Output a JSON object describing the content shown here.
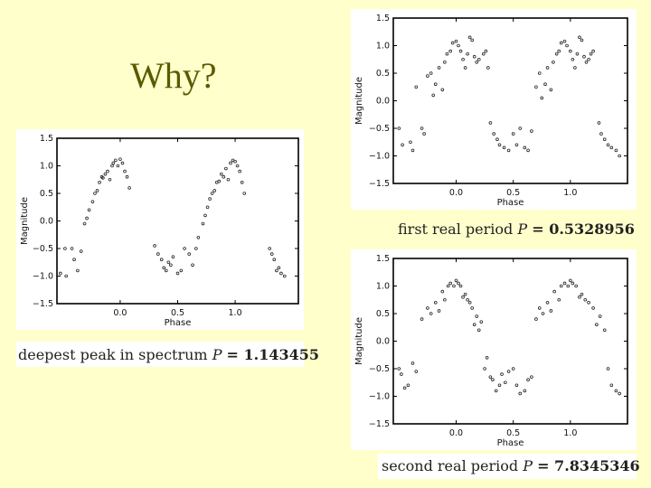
{
  "slide": {
    "title": "Why?"
  },
  "chart_data": [
    {
      "type": "scatter",
      "caption": "deepest peak in spectrum",
      "p_symbol": "P",
      "p_value": "= 1.143455",
      "xlabel": "Phase",
      "ylabel": "Magnitude",
      "xlim": [
        -0.55,
        1.55
      ],
      "ylim": [
        -1.5,
        1.5
      ],
      "xticks": [
        0.0,
        0.5,
        1.0
      ],
      "xtick_labels": [
        "0.0",
        "0.5",
        "1.0"
      ],
      "yticks": [
        1.5,
        1.0,
        0.5,
        0.0,
        -0.5,
        -1.0,
        -1.5
      ],
      "ytick_labels": [
        "1.5",
        "1.0",
        "0.5",
        "0.0",
        "−0.5",
        "−1.0",
        "−1.5"
      ],
      "grid": false,
      "x": [
        -0.52,
        -0.48,
        -0.47,
        -0.42,
        -0.4,
        -0.37,
        -0.34,
        -0.31,
        -0.29,
        -0.27,
        -0.24,
        -0.22,
        -0.2,
        -0.18,
        -0.16,
        -0.15,
        -0.13,
        -0.11,
        -0.09,
        -0.07,
        -0.06,
        -0.04,
        -0.02,
        0.0,
        0.02,
        0.04,
        0.06,
        0.08,
        0.3,
        0.33,
        0.36,
        0.38,
        0.4,
        0.42,
        0.44,
        0.46,
        0.5,
        0.53,
        0.56,
        0.6,
        0.63,
        0.66,
        0.68,
        0.72,
        0.74,
        0.76,
        0.78,
        0.8,
        0.82,
        0.84,
        0.86,
        0.88,
        0.9,
        0.92,
        0.94,
        0.96,
        0.98,
        1.0,
        1.02,
        1.04,
        1.06,
        1.08,
        1.3,
        1.32,
        1.34,
        1.36,
        1.38,
        1.4,
        1.43
      ],
      "y": [
        -0.95,
        -0.5,
        -1.0,
        -0.5,
        -0.7,
        -0.9,
        -0.55,
        -0.05,
        0.05,
        0.2,
        0.35,
        0.5,
        0.55,
        0.7,
        0.8,
        0.78,
        0.85,
        0.9,
        0.75,
        1.0,
        1.05,
        1.1,
        1.0,
        1.12,
        1.05,
        0.9,
        0.8,
        0.6,
        -0.45,
        -0.6,
        -0.7,
        -0.85,
        -0.9,
        -0.75,
        -0.8,
        -0.65,
        -0.95,
        -0.9,
        -0.5,
        -0.6,
        -0.8,
        -0.5,
        -0.3,
        -0.05,
        0.1,
        0.25,
        0.4,
        0.5,
        0.55,
        0.7,
        0.72,
        0.85,
        0.8,
        0.95,
        0.75,
        1.05,
        1.1,
        1.08,
        1.0,
        0.9,
        0.7,
        0.5,
        -0.5,
        -0.6,
        -0.7,
        -0.9,
        -0.85,
        -0.95,
        -1.0
      ]
    },
    {
      "type": "scatter",
      "caption": "first real period",
      "p_symbol": "P",
      "p_value": "= 0.5328956",
      "xlabel": "Phase",
      "ylabel": "Magnitude",
      "xlim": [
        -0.55,
        1.5
      ],
      "ylim": [
        -1.5,
        1.5
      ],
      "xticks": [
        0.0,
        0.5,
        1.0
      ],
      "xtick_labels": [
        "0.0",
        "0.5",
        "1.0"
      ],
      "yticks": [
        1.5,
        1.0,
        0.5,
        0.0,
        -0.5,
        -1.0,
        -1.5
      ],
      "ytick_labels": [
        "1.5",
        "1.0",
        "0.5",
        "0.0",
        "−0.5",
        "−1.0",
        "−1.5"
      ],
      "grid": false,
      "x": [
        -0.5,
        -0.47,
        -0.4,
        -0.38,
        -0.35,
        -0.3,
        -0.28,
        -0.25,
        -0.22,
        -0.2,
        -0.18,
        -0.15,
        -0.12,
        -0.1,
        -0.08,
        -0.05,
        -0.03,
        0.0,
        0.02,
        0.04,
        0.06,
        0.08,
        0.1,
        0.12,
        0.14,
        0.16,
        0.18,
        0.2,
        0.24,
        0.26,
        0.28,
        0.3,
        0.33,
        0.36,
        0.38,
        0.42,
        0.46,
        0.5,
        0.53,
        0.56,
        0.6,
        0.63,
        0.66,
        0.7,
        0.73,
        0.75,
        0.78,
        0.8,
        0.83,
        0.85,
        0.88,
        0.9,
        0.92,
        0.95,
        0.97,
        1.0,
        1.02,
        1.04,
        1.06,
        1.08,
        1.1,
        1.12,
        1.14,
        1.16,
        1.18,
        1.2,
        1.25,
        1.27,
        1.3,
        1.33,
        1.36,
        1.4,
        1.43
      ],
      "y": [
        -0.5,
        -0.8,
        -0.75,
        -0.9,
        0.25,
        -0.5,
        -0.6,
        0.45,
        0.5,
        0.1,
        0.3,
        0.6,
        0.2,
        0.7,
        0.85,
        0.9,
        1.05,
        1.08,
        1.0,
        0.9,
        0.75,
        0.6,
        0.85,
        1.15,
        1.1,
        0.8,
        0.7,
        0.75,
        0.85,
        0.9,
        0.6,
        -0.4,
        -0.6,
        -0.7,
        -0.8,
        -0.85,
        -0.9,
        -0.6,
        -0.8,
        -0.5,
        -0.85,
        -0.9,
        -0.55,
        0.25,
        0.5,
        0.05,
        0.3,
        0.6,
        0.2,
        0.7,
        0.85,
        0.9,
        1.05,
        1.08,
        1.0,
        0.9,
        0.75,
        0.6,
        0.85,
        1.15,
        1.1,
        0.8,
        0.7,
        0.75,
        0.85,
        0.9,
        -0.4,
        -0.6,
        -0.7,
        -0.8,
        -0.85,
        -0.9,
        -1.0
      ]
    },
    {
      "type": "scatter",
      "caption": "second real period",
      "p_symbol": "P",
      "p_value": "= 7.8345346",
      "xlabel": "Phase",
      "ylabel": "Magnitude",
      "xlim": [
        -0.55,
        1.5
      ],
      "ylim": [
        -1.5,
        1.5
      ],
      "xticks": [
        0.0,
        0.5,
        1.0
      ],
      "xtick_labels": [
        "0.0",
        "0.5",
        "1.0"
      ],
      "yticks": [
        1.5,
        1.0,
        0.5,
        0.0,
        -0.5,
        -1.0,
        -1.5
      ],
      "ytick_labels": [
        "1.5",
        "1.0",
        "0.5",
        "0.0",
        "−0.5",
        "−1.0",
        "−1.5"
      ],
      "grid": false,
      "x": [
        -0.5,
        -0.48,
        -0.45,
        -0.42,
        -0.38,
        -0.35,
        -0.3,
        -0.25,
        -0.22,
        -0.18,
        -0.15,
        -0.12,
        -0.1,
        -0.07,
        -0.05,
        -0.02,
        0.0,
        0.02,
        0.04,
        0.06,
        0.08,
        0.1,
        0.12,
        0.14,
        0.16,
        0.18,
        0.2,
        0.22,
        0.25,
        0.27,
        0.3,
        0.32,
        0.35,
        0.38,
        0.4,
        0.43,
        0.46,
        0.5,
        0.53,
        0.56,
        0.6,
        0.63,
        0.66,
        0.7,
        0.73,
        0.76,
        0.8,
        0.83,
        0.86,
        0.9,
        0.92,
        0.95,
        0.98,
        1.0,
        1.02,
        1.05,
        1.08,
        1.1,
        1.13,
        1.16,
        1.2,
        1.23,
        1.26,
        1.3,
        1.33,
        1.36,
        1.4,
        1.43
      ],
      "y": [
        -0.5,
        -0.6,
        -0.85,
        -0.8,
        -0.4,
        -0.55,
        0.4,
        0.6,
        0.5,
        0.7,
        0.55,
        0.9,
        0.75,
        1.0,
        1.05,
        1.0,
        1.1,
        1.05,
        1.0,
        0.8,
        0.85,
        0.75,
        0.7,
        0.6,
        0.3,
        0.45,
        0.2,
        0.35,
        -0.5,
        -0.3,
        -0.65,
        -0.7,
        -0.9,
        -0.8,
        -0.6,
        -0.75,
        -0.55,
        -0.5,
        -0.8,
        -0.95,
        -0.9,
        -0.7,
        -0.65,
        0.4,
        0.6,
        0.5,
        0.7,
        0.55,
        0.9,
        0.75,
        1.0,
        1.05,
        1.0,
        1.1,
        1.05,
        1.0,
        0.8,
        0.85,
        0.75,
        0.7,
        0.6,
        0.3,
        0.45,
        0.2,
        -0.5,
        -0.8,
        -0.9,
        -0.95
      ]
    }
  ]
}
